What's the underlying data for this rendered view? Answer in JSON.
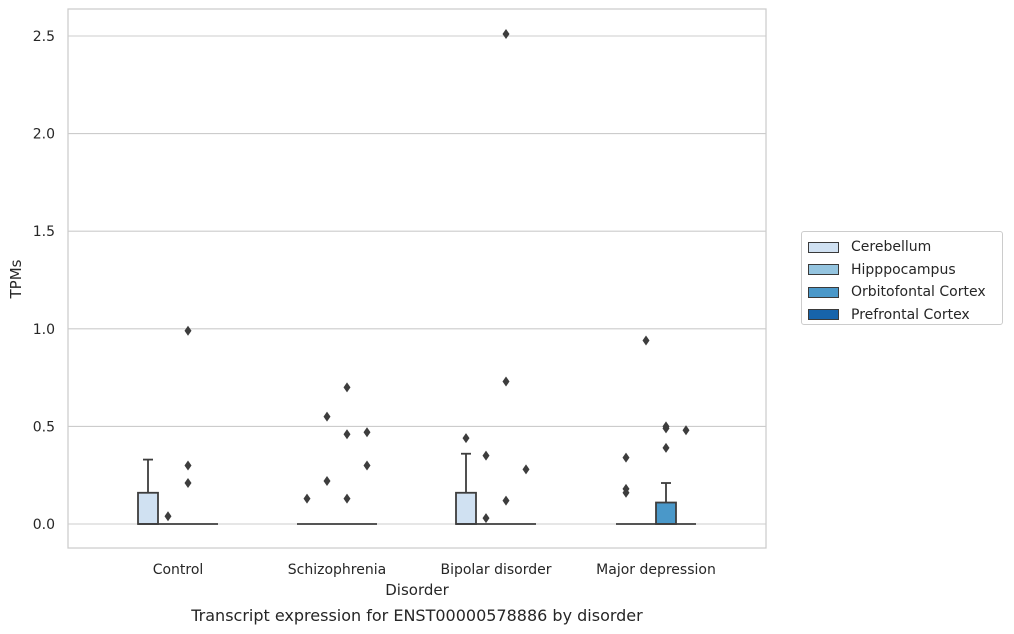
{
  "caption": "Transcript expression for ENST00000578886 by disorder",
  "legend": {
    "items": [
      {
        "label": "Cerebellum",
        "color": "#d0e1f2"
      },
      {
        "label": "Hipppocampus",
        "color": "#94c4df"
      },
      {
        "label": "Orbitofontal Cortex",
        "color": "#4a98c9"
      },
      {
        "label": "Prefrontal Cortex",
        "color": "#1764ab"
      }
    ]
  },
  "chart_data": {
    "type": "box",
    "title": "",
    "xlabel": "Disorder",
    "ylabel": "TPMs",
    "ylim": [
      -0.12,
      2.65
    ],
    "yticks": [
      0.0,
      0.5,
      1.0,
      1.5,
      2.0,
      2.5
    ],
    "ytick_labels": [
      "0.0",
      "0.5",
      "1.0",
      "1.5",
      "2.0",
      "2.5"
    ],
    "grid": "horizontal",
    "legend_position": "right",
    "categories": [
      "Control",
      "Schizophrenia",
      "Bipolar disorder",
      "Major depression"
    ],
    "series": [
      {
        "name": "Cerebellum",
        "color": "#d0e1f2",
        "boxes": [
          {
            "q1": 0,
            "median": 0,
            "q3": 0.16,
            "whisker_low": 0,
            "whisker_high": 0.33,
            "outliers": []
          },
          {
            "q1": 0,
            "median": 0,
            "q3": 0,
            "whisker_low": 0,
            "whisker_high": 0,
            "outliers": [
              0.13
            ]
          },
          {
            "q1": 0,
            "median": 0,
            "q3": 0.16,
            "whisker_low": 0,
            "whisker_high": 0.36,
            "outliers": [
              0.44
            ]
          },
          {
            "q1": 0,
            "median": 0,
            "q3": 0,
            "whisker_low": 0,
            "whisker_high": 0,
            "outliers": [
              0.16,
              0.18,
              0.34
            ]
          }
        ]
      },
      {
        "name": "Hipppocampus",
        "color": "#94c4df",
        "boxes": [
          {
            "q1": 0,
            "median": 0,
            "q3": 0,
            "whisker_low": 0,
            "whisker_high": 0,
            "outliers": [
              0.04
            ]
          },
          {
            "q1": 0,
            "median": 0,
            "q3": 0,
            "whisker_low": 0,
            "whisker_high": 0,
            "outliers": [
              0.22,
              0.55
            ]
          },
          {
            "q1": 0,
            "median": 0,
            "q3": 0,
            "whisker_low": 0,
            "whisker_high": 0,
            "outliers": [
              0.03,
              0.35
            ]
          },
          {
            "q1": 0,
            "median": 0,
            "q3": 0,
            "whisker_low": 0,
            "whisker_high": 0,
            "outliers": [
              0.94
            ]
          }
        ]
      },
      {
        "name": "Orbitofontal Cortex",
        "color": "#4a98c9",
        "boxes": [
          {
            "q1": 0,
            "median": 0,
            "q3": 0,
            "whisker_low": 0,
            "whisker_high": 0,
            "outliers": [
              0.21,
              0.3,
              0.99
            ]
          },
          {
            "q1": 0,
            "median": 0,
            "q3": 0,
            "whisker_low": 0,
            "whisker_high": 0,
            "outliers": [
              0.13,
              0.46,
              0.7
            ]
          },
          {
            "q1": 0,
            "median": 0,
            "q3": 0,
            "whisker_low": 0,
            "whisker_high": 0,
            "outliers": [
              0.12,
              0.73,
              2.51
            ]
          },
          {
            "q1": 0,
            "median": 0,
            "q3": 0.11,
            "whisker_low": 0,
            "whisker_high": 0.21,
            "outliers": [
              0.39,
              0.49,
              0.5
            ]
          }
        ]
      },
      {
        "name": "Prefrontal Cortex",
        "color": "#1764ab",
        "boxes": [
          {
            "q1": 0,
            "median": 0,
            "q3": 0,
            "whisker_low": 0,
            "whisker_high": 0,
            "outliers": []
          },
          {
            "q1": 0,
            "median": 0,
            "q3": 0,
            "whisker_low": 0,
            "whisker_high": 0,
            "outliers": [
              0.3,
              0.47
            ]
          },
          {
            "q1": 0,
            "median": 0,
            "q3": 0,
            "whisker_low": 0,
            "whisker_high": 0,
            "outliers": [
              0.28
            ]
          },
          {
            "q1": 0,
            "median": 0,
            "q3": 0,
            "whisker_low": 0,
            "whisker_high": 0,
            "outliers": [
              0.48
            ]
          }
        ]
      }
    ]
  }
}
